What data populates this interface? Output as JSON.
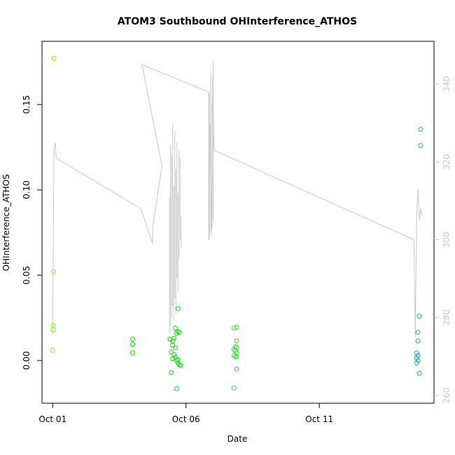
{
  "chart_data": {
    "type": "scatter",
    "title": "ATOM3 Southbound OHInterference_ATHOS",
    "xlabel": "Date",
    "ylabel": "OHInterference_ATHOS",
    "y2label": "",
    "x_ticks": [
      {
        "label": "Oct 01",
        "value": 0
      },
      {
        "label": "Oct 06",
        "value": 5
      },
      {
        "label": "Oct 11",
        "value": 10
      }
    ],
    "xlim": [
      -0.4,
      14.3
    ],
    "ylim": [
      -0.025,
      0.187
    ],
    "y_ticks": [
      {
        "label": "0.00",
        "value": 0.0
      },
      {
        "label": "0.05",
        "value": 0.05
      },
      {
        "label": "0.10",
        "value": 0.1
      },
      {
        "label": "0.15",
        "value": 0.15
      }
    ],
    "y2lim": [
      258,
      351
    ],
    "y2_ticks": [
      {
        "label": "260",
        "value": 260
      },
      {
        "label": "280",
        "value": 280
      },
      {
        "label": "300",
        "value": 300
      },
      {
        "label": "320",
        "value": 320
      },
      {
        "label": "340",
        "value": 340
      }
    ],
    "grid": false,
    "colors": {
      "scatter_green_early": "#7cfc00",
      "scatter_green_mid": "#00e000",
      "scatter_green_late": "#33dd33",
      "scatter_blue": "#1e9fd6",
      "line": "#c8c8c8",
      "right_axis": "#c8c8c8"
    },
    "series": [
      {
        "kind": "points",
        "color": "#7cfc00",
        "points": [
          [
            0.05,
            0.177
          ],
          [
            0.03,
            0.052
          ],
          [
            0.02,
            0.0205
          ],
          [
            0.02,
            0.018
          ],
          [
            0.0,
            0.006
          ]
        ]
      },
      {
        "kind": "points",
        "color": "#00e000",
        "points": [
          [
            3.0,
            0.0125
          ],
          [
            3.0,
            0.0095
          ],
          [
            3.0,
            0.0045
          ],
          [
            4.4,
            0.0125
          ],
          [
            4.5,
            0.0115
          ],
          [
            4.55,
            0.013
          ],
          [
            4.6,
            0.019
          ],
          [
            4.65,
            0.016
          ],
          [
            4.7,
            0.017
          ],
          [
            4.75,
            0.0165
          ],
          [
            4.5,
            0.009
          ],
          [
            4.6,
            0.0075
          ],
          [
            4.45,
            0.005
          ],
          [
            4.55,
            0.0035
          ],
          [
            4.6,
            0.002
          ],
          [
            4.65,
            0.0
          ],
          [
            4.7,
            -0.0015
          ],
          [
            4.75,
            -0.0025
          ],
          [
            4.8,
            -0.003
          ],
          [
            4.5,
            0.001
          ],
          [
            4.7,
            0.0005
          ],
          [
            4.45,
            -0.007
          ],
          [
            4.65,
            -0.0165
          ],
          [
            4.7,
            0.0305
          ]
        ]
      },
      {
        "kind": "points",
        "color": "#33dd33",
        "points": [
          [
            6.8,
            0.019
          ],
          [
            6.9,
            0.0195
          ],
          [
            6.9,
            0.0115
          ],
          [
            6.85,
            0.008
          ],
          [
            6.9,
            0.0075
          ],
          [
            6.8,
            0.0065
          ],
          [
            6.85,
            0.0055
          ],
          [
            6.9,
            0.0045
          ],
          [
            6.8,
            0.003
          ],
          [
            6.9,
            0.0025
          ],
          [
            6.85,
            0.002
          ],
          [
            6.9,
            -0.005
          ],
          [
            6.8,
            -0.016
          ]
        ]
      },
      {
        "kind": "points",
        "color": "#1e9fd6",
        "points": [
          [
            13.8,
            0.1355
          ],
          [
            13.8,
            0.126
          ],
          [
            13.75,
            0.026
          ],
          [
            13.7,
            0.0165
          ],
          [
            13.7,
            0.0115
          ],
          [
            13.65,
            0.0045
          ],
          [
            13.7,
            0.003
          ],
          [
            13.65,
            0.0015
          ],
          [
            13.7,
            0.0
          ],
          [
            13.65,
            -0.0015
          ],
          [
            13.75,
            -0.0075
          ]
        ]
      },
      {
        "kind": "line",
        "axis": "right",
        "color": "#c8c8c8",
        "points": [
          [
            0.0,
            276
          ],
          [
            0.05,
            323
          ],
          [
            0.1,
            325
          ],
          [
            0.13,
            321
          ],
          [
            3.3,
            308
          ],
          [
            3.75,
            299
          ],
          [
            3.75,
            303
          ],
          [
            4.1,
            319
          ],
          [
            3.35,
            345
          ],
          [
            5.85,
            338
          ],
          [
            5.85,
            300
          ],
          [
            5.9,
            330
          ],
          [
            5.95,
            301
          ],
          [
            6.0,
            342
          ],
          [
            6.05,
            323
          ],
          [
            13.55,
            300
          ],
          [
            13.6,
            275
          ],
          [
            13.65,
            306
          ],
          [
            13.7,
            313
          ],
          [
            13.75,
            305
          ],
          [
            13.8,
            308
          ],
          [
            13.85,
            306
          ]
        ]
      },
      {
        "kind": "vertical_burst",
        "axis": "right",
        "color": "#c8c8c8",
        "range": [
          4.35,
          4.85
        ],
        "bars": [
          [
            4.38,
            276,
            311
          ],
          [
            4.42,
            278,
            324
          ],
          [
            4.46,
            280,
            322
          ],
          [
            4.5,
            283,
            330
          ],
          [
            4.54,
            279,
            314
          ],
          [
            4.58,
            285,
            328
          ],
          [
            4.62,
            281,
            318
          ],
          [
            4.66,
            290,
            325
          ],
          [
            4.7,
            287,
            312
          ],
          [
            4.74,
            295,
            323
          ],
          [
            4.78,
            300,
            321
          ],
          [
            4.82,
            298,
            306
          ]
        ]
      },
      {
        "kind": "vertical_burst",
        "axis": "right",
        "color": "#c8c8c8",
        "range": [
          5.85,
          6.05
        ],
        "bars": [
          [
            5.88,
            300,
            338
          ],
          [
            5.93,
            302,
            343
          ],
          [
            5.98,
            303,
            335
          ],
          [
            6.02,
            305,
            346
          ]
        ]
      }
    ]
  }
}
